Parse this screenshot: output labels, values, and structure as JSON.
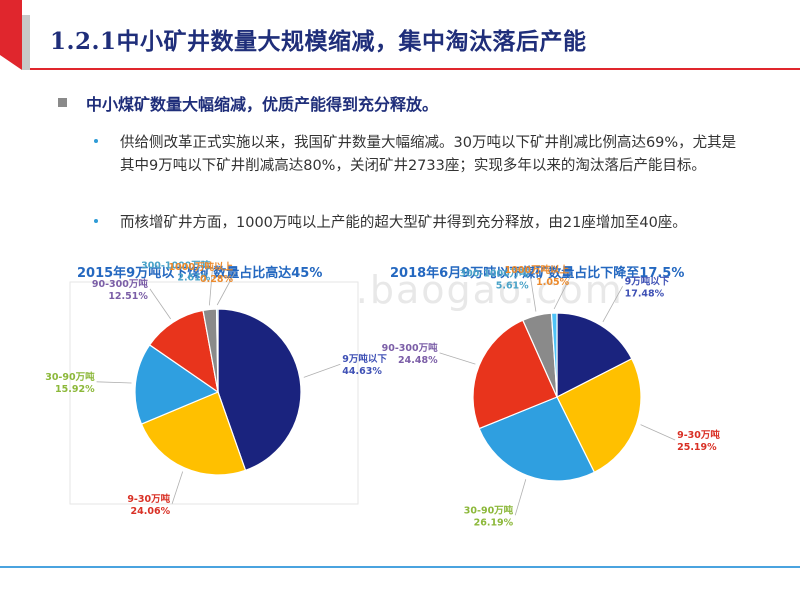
{
  "slide": {
    "title": "1.2.1中小矿井数量大规模缩减，集中淘汰落后产能",
    "main_point": "中小煤矿数量大幅缩减，优质产能得到充分释放。",
    "sub_points": [
      "供给侧改革正式实施以来，我国矿井数量大幅缩减。30万吨以下矿井削减比例高达69%，尤其是其中9万吨以下矿井削减高达80%，关闭矿井2733座；实现多年以来的淘汰落后产能目标。",
      "而核增矿井方面，1000万吨以上产能的超大型矿井得到充分释放，由21座增加至40座。"
    ],
    "watermark": "www.baogao.com",
    "colors": {
      "title": "#1f2e7a",
      "accent_red": "#e0262d",
      "accent_blue": "#4aa3df",
      "pie_title": "#2468c0"
    }
  },
  "chart_data": [
    {
      "type": "pie",
      "title": "2015年9万吨以下煤矿数量占比高达45%",
      "slices": [
        {
          "label": "9万吨以下",
          "value": 44.63,
          "value_label": "44.63%",
          "color": "#1a237e",
          "label_color": "#3f51b5"
        },
        {
          "label": "9-30万吨",
          "value": 24.06,
          "value_label": "24.06%",
          "color": "#ffc000",
          "label_color": "#d93025"
        },
        {
          "label": "30-90万吨",
          "value": 15.92,
          "value_label": "15.92%",
          "color": "#2f9fe0",
          "label_color": "#8cb83a"
        },
        {
          "label": "90-300万吨",
          "value": 12.51,
          "value_label": "12.51%",
          "color": "#e8341c",
          "label_color": "#7b5ea7"
        },
        {
          "label": "300-1000万吨",
          "value": 2.61,
          "value_label": "2.61%",
          "color": "#8a8a8a",
          "label_color": "#4aa3c8"
        },
        {
          "label": "1000万吨以上",
          "value": 0.28,
          "value_label": "0.28%",
          "color": "#4fc3f7",
          "label_color": "#ec8a2c"
        }
      ]
    },
    {
      "type": "pie",
      "title": "2018年6月9万吨以下煤矿数量占比下降至17.5%",
      "slices": [
        {
          "label": "9万吨以下",
          "value": 17.48,
          "value_label": "17.48%",
          "color": "#1a237e",
          "label_color": "#3f51b5"
        },
        {
          "label": "9-30万吨",
          "value": 25.19,
          "value_label": "25.19%",
          "color": "#ffc000",
          "label_color": "#d93025"
        },
        {
          "label": "30-90万吨",
          "value": 26.19,
          "value_label": "26.19%",
          "color": "#2f9fe0",
          "label_color": "#8cb83a"
        },
        {
          "label": "90-300万吨",
          "value": 24.48,
          "value_label": "24.48%",
          "color": "#e8341c",
          "label_color": "#7b5ea7"
        },
        {
          "label": "300-1000万吨",
          "value": 5.61,
          "value_label": "5.61%",
          "color": "#8a8a8a",
          "label_color": "#4aa3c8"
        },
        {
          "label": "1000万吨以上",
          "value": 1.05,
          "value_label": "1.05%",
          "color": "#4fc3f7",
          "label_color": "#ec8a2c"
        }
      ]
    }
  ]
}
